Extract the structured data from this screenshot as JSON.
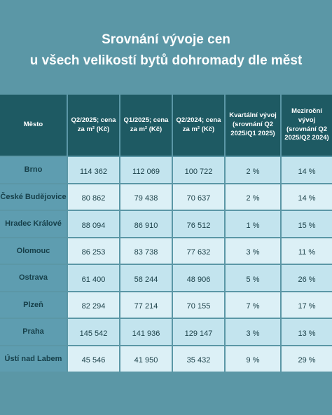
{
  "title": {
    "lines": [
      "Srovnání vývoje cen",
      "u všech velikostí bytů dohromady dle měst"
    ]
  },
  "table": {
    "headers": [
      "Město",
      "Q2/2025; cena za m² (Kč)",
      "Q1/2025; cena za m² (Kč)",
      "Q2/2024; cena za m² (Kč)",
      "Kvartální vývoj (srovnání Q2 2025/Q1 2025)",
      "Meziroční vývoj (srovnání Q2 2025/Q2 2024)"
    ],
    "rows": [
      [
        "Brno",
        "114 362",
        "112 069",
        "100 722",
        "2 %",
        "14 %"
      ],
      [
        "České Budějovice",
        "80 862",
        "79 438",
        "70 637",
        "2 %",
        "14 %"
      ],
      [
        "Hradec Králové",
        "88 094",
        "86 910",
        "76 512",
        "1 %",
        "15 %"
      ],
      [
        "Olomouc",
        "86 253",
        "83 738",
        "77 632",
        "3 %",
        "11 %"
      ],
      [
        "Ostrava",
        "61 400",
        "58 244",
        "48 906",
        "5 %",
        "26 %"
      ],
      [
        "Plzeň",
        "82 294",
        "77 214",
        "70 155",
        "7 %",
        "17 %"
      ],
      [
        "Praha",
        "145 542",
        "141 936",
        "129 147",
        "3 %",
        "13 %"
      ],
      [
        "Ústí nad Labem",
        "45 546",
        "41 950",
        "35 432",
        "9 %",
        "29 %"
      ]
    ]
  }
}
